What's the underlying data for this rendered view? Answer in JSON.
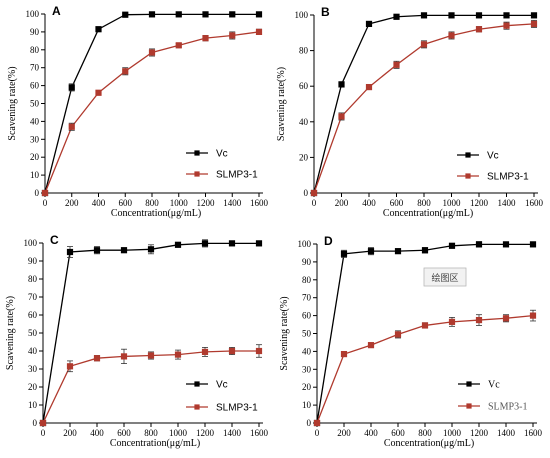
{
  "colors": {
    "vc": "#000000",
    "slmp": "#b03a2e",
    "axis": "#000000"
  },
  "watermark": "绘图区",
  "chart_data": [
    {
      "type": "line",
      "panel_label": "A",
      "xlabel": "Concentration(μg/mL)",
      "ylabel": "Scavening rate(%)",
      "xlim": [
        0,
        1600
      ],
      "ylim": [
        0,
        100
      ],
      "xticks": [
        0,
        200,
        400,
        600,
        800,
        1000,
        1200,
        1400,
        1600
      ],
      "yticks": [
        0,
        10,
        20,
        30,
        40,
        50,
        60,
        70,
        80,
        90,
        100
      ],
      "x": [
        0,
        200,
        400,
        600,
        800,
        1000,
        1200,
        1400,
        1600
      ],
      "legend_position": "bottom-right",
      "series": [
        {
          "name": "Vc",
          "values": [
            0,
            59,
            91.5,
            99.6,
            99.8,
            99.8,
            99.8,
            99.8,
            99.8
          ],
          "errors": [
            0,
            2,
            1,
            0.5,
            0.4,
            0.4,
            0.4,
            0.4,
            0.4
          ]
        },
        {
          "name": "SLMP3-1",
          "values": [
            0,
            37,
            56,
            68,
            78.5,
            82.5,
            86.5,
            88,
            90
          ],
          "errors": [
            0,
            2,
            1,
            2,
            2,
            1,
            1.5,
            2,
            1.5
          ]
        }
      ]
    },
    {
      "type": "line",
      "panel_label": "B",
      "xlabel": "Concentration(μg/mL)",
      "ylabel": "Scavening rate(%)",
      "xlim": [
        0,
        1600
      ],
      "ylim": [
        0,
        100
      ],
      "xticks": [
        0,
        200,
        400,
        600,
        800,
        1000,
        1200,
        1400,
        1600
      ],
      "yticks": [
        0,
        20,
        40,
        60,
        80,
        100
      ],
      "x": [
        0,
        200,
        400,
        600,
        800,
        1000,
        1200,
        1400,
        1600
      ],
      "legend_position": "bottom-right",
      "series": [
        {
          "name": "Vc",
          "values": [
            0,
            61,
            95,
            99,
            99.8,
            99.8,
            99.8,
            99.8,
            99.8
          ],
          "errors": [
            0,
            1.5,
            1,
            0.8,
            0.5,
            0.4,
            0.4,
            0.4,
            0.4
          ]
        },
        {
          "name": "SLMP3-1",
          "values": [
            0,
            43,
            59.5,
            72,
            83.5,
            88.5,
            92,
            94,
            95
          ],
          "errors": [
            0,
            2,
            1,
            2,
            2,
            2,
            1.5,
            2,
            2
          ]
        }
      ]
    },
    {
      "type": "line",
      "panel_label": "C",
      "xlabel": "Concentration(μg/mL)",
      "ylabel": "Scavening rate(%)",
      "xlim": [
        0,
        1600
      ],
      "ylim": [
        0,
        100
      ],
      "xticks": [
        0,
        200,
        400,
        600,
        800,
        1000,
        1200,
        1400,
        1600
      ],
      "yticks": [
        0,
        10,
        20,
        30,
        40,
        50,
        60,
        70,
        80,
        90,
        100
      ],
      "x": [
        0,
        200,
        400,
        600,
        800,
        1000,
        1200,
        1400,
        1600
      ],
      "legend_position": "bottom-right",
      "series": [
        {
          "name": "Vc",
          "values": [
            0,
            95,
            96,
            96,
            96.5,
            99,
            99.8,
            99.8,
            99.8
          ],
          "errors": [
            0,
            3,
            2,
            1,
            2.5,
            1,
            2,
            1,
            1
          ]
        },
        {
          "name": "SLMP3-1",
          "values": [
            0,
            31.5,
            36,
            37,
            37.5,
            38,
            39.5,
            40,
            40
          ],
          "errors": [
            0,
            3,
            1.5,
            4,
            2,
            2.5,
            2.5,
            2,
            3.5
          ]
        }
      ]
    },
    {
      "type": "line",
      "panel_label": "D",
      "xlabel": "Concentration(μg/mL)",
      "ylabel": "Scavening rate(%)",
      "xlim": [
        0,
        1600
      ],
      "ylim": [
        0,
        100
      ],
      "xticks": [
        0,
        200,
        400,
        600,
        800,
        1000,
        1200,
        1400,
        1600
      ],
      "yticks": [
        0,
        10,
        20,
        30,
        40,
        50,
        60,
        70,
        80,
        90,
        100
      ],
      "x": [
        0,
        200,
        400,
        600,
        800,
        1000,
        1200,
        1400,
        1600
      ],
      "legend_position": "bottom-right",
      "series": [
        {
          "name": "Vc",
          "values": [
            0,
            94.5,
            96,
            96,
            96.5,
            99,
            99.8,
            99.8,
            99.8
          ],
          "errors": [
            0,
            2,
            2,
            1,
            1.5,
            1,
            1.5,
            1,
            1
          ]
        },
        {
          "name": "SLMP3-1",
          "values": [
            0,
            38.5,
            43.5,
            49.5,
            54.5,
            56.5,
            57.5,
            58.5,
            60
          ],
          "errors": [
            0,
            1,
            1,
            2,
            1.5,
            2.5,
            3,
            2,
            3
          ]
        }
      ]
    }
  ]
}
